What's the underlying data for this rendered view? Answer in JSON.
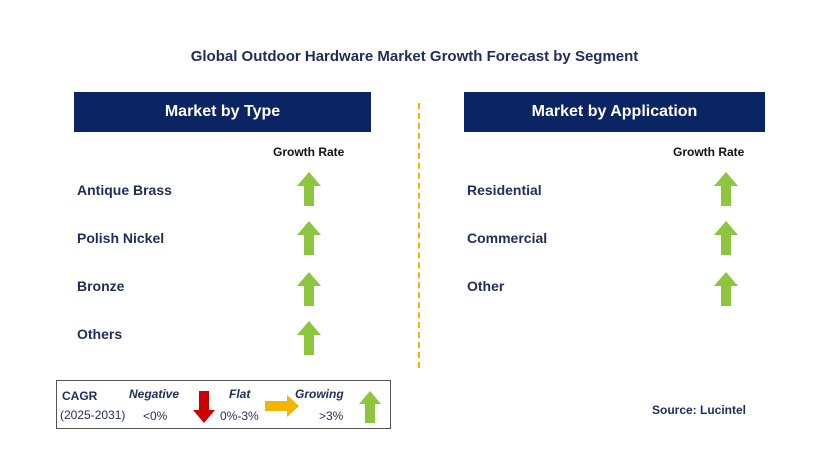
{
  "title": "Global Outdoor Hardware Market Growth Forecast by Segment",
  "left_panel": {
    "header": "Market by Type",
    "column_label": "Growth Rate",
    "rows": [
      {
        "label": "Antique Brass",
        "trend": "growing"
      },
      {
        "label": "Polish Nickel",
        "trend": "growing"
      },
      {
        "label": "Bronze",
        "trend": "growing"
      },
      {
        "label": "Others",
        "trend": "growing"
      }
    ]
  },
  "right_panel": {
    "header": "Market by Application",
    "column_label": "Growth Rate",
    "rows": [
      {
        "label": "Residential",
        "trend": "growing"
      },
      {
        "label": "Commercial",
        "trend": "growing"
      },
      {
        "label": "Other",
        "trend": "growing"
      }
    ]
  },
  "legend": {
    "cagr_label": "CAGR",
    "period": "(2025-2031)",
    "negative_label": "Negative",
    "negative_range": "<0%",
    "flat_label": "Flat",
    "flat_range": "0%-3%",
    "growing_label": "Growing",
    "growing_range": ">3%"
  },
  "source": "Source: Lucintel",
  "colors": {
    "header_bg": "#0b2464",
    "growing_arrow": "#8cc63f",
    "negative_arrow": "#cc0000",
    "flat_arrow": "#f5b400",
    "divider": "#f5b400"
  }
}
